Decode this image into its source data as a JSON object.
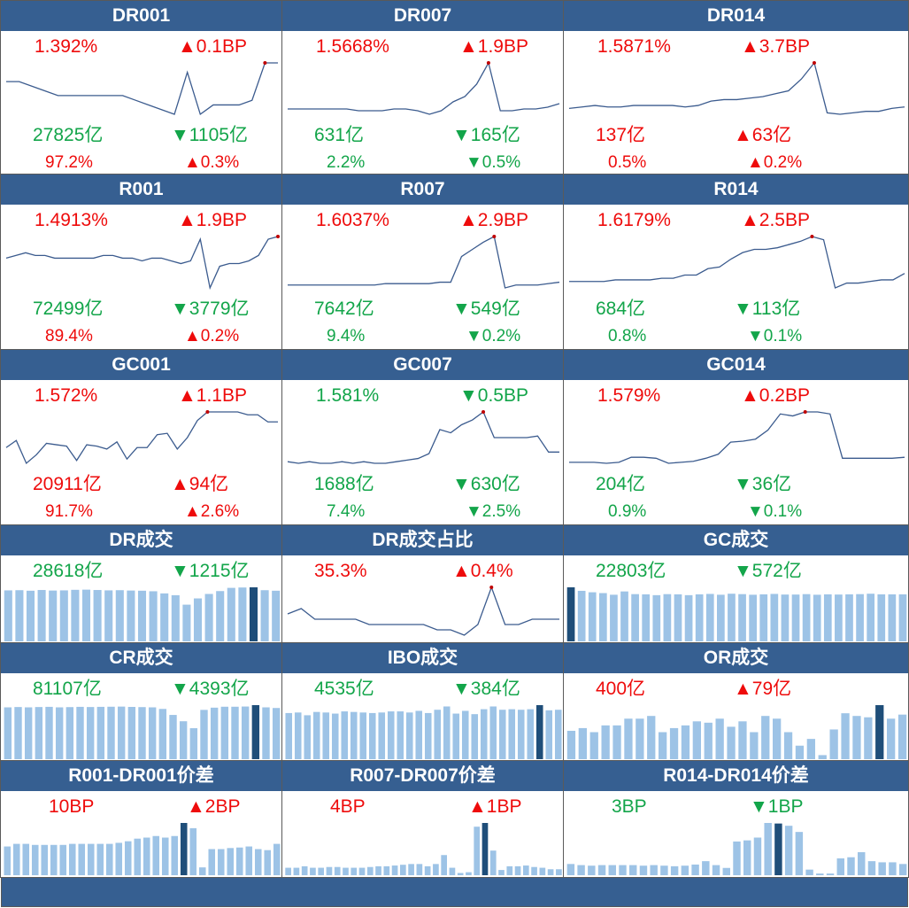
{
  "colors": {
    "header": "#365f91",
    "up": "#ee0b0b",
    "down": "#13a54a",
    "line": "#3b5b8e",
    "bar": "#9dc3e6",
    "bar_highlight": "#1f4e79"
  },
  "rate_panels": [
    {
      "title": "DR001",
      "rate": "1.392%",
      "rate_dir": "up",
      "change": "▲0.1BP",
      "vol": "27825亿",
      "vol_dir": "down",
      "vol_change": "▼1105亿",
      "share": "97.2%",
      "share_dir": "up",
      "share_change": "▲0.3%",
      "chart_data": {
        "type": "line",
        "values": [
          1.388,
          1.388,
          1.387,
          1.386,
          1.385,
          1.385,
          1.385,
          1.385,
          1.385,
          1.385,
          1.384,
          1.383,
          1.382,
          1.381,
          1.39,
          1.381,
          1.383,
          1.383,
          1.383,
          1.384,
          1.392,
          1.392
        ]
      }
    },
    {
      "title": "DR007",
      "rate": "1.5668%",
      "rate_dir": "up",
      "change": "▲1.9BP",
      "vol": "631亿",
      "vol_dir": "down",
      "vol_change": "▼165亿",
      "share": "2.2%",
      "share_dir": "down",
      "share_change": "▼0.5%",
      "chart_data": {
        "type": "line",
        "values": [
          1.541,
          1.541,
          1.541,
          1.541,
          1.541,
          1.541,
          1.54,
          1.54,
          1.54,
          1.541,
          1.541,
          1.54,
          1.538,
          1.54,
          1.545,
          1.548,
          1.555,
          1.567,
          1.54,
          1.54,
          1.541,
          1.541,
          1.542,
          1.544
        ]
      }
    },
    {
      "title": "DR014",
      "rate": "1.5871%",
      "rate_dir": "up",
      "change": "▲3.7BP",
      "vol": "137亿",
      "vol_dir": "up",
      "vol_change": "▲63亿",
      "share": "0.5%",
      "share_dir": "up",
      "share_change": "▲0.2%",
      "chart_data": {
        "type": "line",
        "values": [
          1.555,
          1.556,
          1.557,
          1.556,
          1.556,
          1.557,
          1.557,
          1.557,
          1.557,
          1.556,
          1.557,
          1.56,
          1.561,
          1.561,
          1.562,
          1.563,
          1.565,
          1.567,
          1.575,
          1.586,
          1.552,
          1.551,
          1.552,
          1.553,
          1.553,
          1.555,
          1.556
        ]
      }
    },
    {
      "title": "R001",
      "rate": "1.4913%",
      "rate_dir": "up",
      "change": "▲1.9BP",
      "vol": "72499亿",
      "vol_dir": "down",
      "vol_change": "▼3779亿",
      "share": "89.4%",
      "share_dir": "up",
      "share_change": "▲0.2%",
      "chart_data": {
        "type": "line",
        "values": [
          1.483,
          1.484,
          1.485,
          1.484,
          1.484,
          1.483,
          1.483,
          1.483,
          1.483,
          1.483,
          1.484,
          1.484,
          1.483,
          1.483,
          1.482,
          1.483,
          1.483,
          1.482,
          1.481,
          1.482,
          1.49,
          1.472,
          1.48,
          1.481,
          1.481,
          1.482,
          1.484,
          1.49,
          1.491
        ]
      }
    },
    {
      "title": "R007",
      "rate": "1.6037%",
      "rate_dir": "up",
      "change": "▲2.9BP",
      "vol": "7642亿",
      "vol_dir": "down",
      "vol_change": "▼549亿",
      "share": "9.4%",
      "share_dir": "down",
      "share_change": "▼0.2%",
      "chart_data": {
        "type": "line",
        "values": [
          1.57,
          1.57,
          1.57,
          1.57,
          1.57,
          1.57,
          1.57,
          1.57,
          1.57,
          1.571,
          1.571,
          1.571,
          1.571,
          1.571,
          1.572,
          1.572,
          1.59,
          1.595,
          1.6,
          1.604,
          1.568,
          1.57,
          1.57,
          1.57,
          1.571,
          1.572
        ]
      }
    },
    {
      "title": "R014",
      "rate": "1.6179%",
      "rate_dir": "up",
      "change": "▲2.5BP",
      "vol": "684亿",
      "vol_dir": "down",
      "vol_change": "▼113亿",
      "share": "0.8%",
      "share_dir": "down",
      "share_change": "▼0.1%",
      "chart_data": {
        "type": "line",
        "values": [
          1.589,
          1.589,
          1.589,
          1.589,
          1.59,
          1.59,
          1.59,
          1.59,
          1.591,
          1.591,
          1.593,
          1.593,
          1.597,
          1.598,
          1.603,
          1.607,
          1.609,
          1.609,
          1.61,
          1.612,
          1.614,
          1.617,
          1.615,
          1.585,
          1.588,
          1.588,
          1.589,
          1.59,
          1.59,
          1.594
        ]
      }
    },
    {
      "title": "GC001",
      "rate": "1.572%",
      "rate_dir": "up",
      "change": "▲1.1BP",
      "vol": "20911亿",
      "vol_dir": "up",
      "vol_change": "▲94亿",
      "share": "91.7%",
      "share_dir": "up",
      "share_change": "▲2.6%",
      "chart_data": {
        "type": "line",
        "values": [
          1.546,
          1.551,
          1.535,
          1.541,
          1.549,
          1.548,
          1.547,
          1.537,
          1.548,
          1.547,
          1.545,
          1.55,
          1.538,
          1.546,
          1.546,
          1.555,
          1.556,
          1.545,
          1.553,
          1.565,
          1.571,
          1.571,
          1.571,
          1.571,
          1.569,
          1.569,
          1.564,
          1.564
        ]
      }
    },
    {
      "title": "GC007",
      "rate": "1.581%",
      "rate_dir": "down",
      "change": "▼0.5BP",
      "vol": "1688亿",
      "vol_dir": "down",
      "vol_change": "▼630亿",
      "share": "7.4%",
      "share_dir": "down",
      "share_change": "▼2.5%",
      "chart_data": {
        "type": "line",
        "values": [
          1.55,
          1.549,
          1.55,
          1.549,
          1.549,
          1.55,
          1.549,
          1.55,
          1.549,
          1.549,
          1.55,
          1.551,
          1.552,
          1.555,
          1.57,
          1.568,
          1.573,
          1.576,
          1.581,
          1.565,
          1.565,
          1.565,
          1.565,
          1.566,
          1.556,
          1.556
        ]
      }
    },
    {
      "title": "GC014",
      "rate": "1.579%",
      "rate_dir": "up",
      "change": "▲0.2BP",
      "vol": "204亿",
      "vol_dir": "down",
      "vol_change": "▼36亿",
      "share": "0.9%",
      "share_dir": "down",
      "share_change": "▼0.1%",
      "chart_data": {
        "type": "line",
        "values": [
          1.532,
          1.532,
          1.532,
          1.531,
          1.532,
          1.537,
          1.537,
          1.536,
          1.531,
          1.532,
          1.533,
          1.536,
          1.54,
          1.552,
          1.553,
          1.555,
          1.564,
          1.58,
          1.578,
          1.582,
          1.582,
          1.58,
          1.536,
          1.536,
          1.536,
          1.536,
          1.536,
          1.537
        ]
      }
    }
  ],
  "volume_panels": [
    {
      "title": "DR成交",
      "value": "28618亿",
      "value_dir": "down",
      "change": "▼1215亿",
      "change_dir": "down",
      "chart_data": {
        "type": "bar",
        "values": [
          28.5,
          28.6,
          28.3,
          28.7,
          28.4,
          28.5,
          28.8,
          28.9,
          28.7,
          28.5,
          28.6,
          28.4,
          28.3,
          28.0,
          26.8,
          25.8,
          20.5,
          24.0,
          26.5,
          28.1,
          29.9,
          30.1,
          30.2,
          28.6,
          28.3
        ],
        "highlight": 22
      }
    },
    {
      "title": "DR成交占比",
      "value": "35.3%",
      "value_dir": "up",
      "change": "▲0.4%",
      "change_dir": "up",
      "chart_data": {
        "type": "line",
        "values": [
          34.8,
          34.9,
          34.7,
          34.7,
          34.7,
          34.7,
          34.6,
          34.6,
          34.6,
          34.6,
          34.6,
          34.5,
          34.5,
          34.4,
          34.6,
          35.3,
          34.6,
          34.6,
          34.7,
          34.7,
          34.7
        ]
      }
    },
    {
      "title": "GC成交",
      "value": "22803亿",
      "value_dir": "down",
      "change": "▼572亿",
      "change_dir": "down",
      "chart_data": {
        "type": "bar",
        "values": [
          26.2,
          24.5,
          23.8,
          23.4,
          22.6,
          24.2,
          22.9,
          22.8,
          22.4,
          22.9,
          22.8,
          22.4,
          22.8,
          23.0,
          22.6,
          23.1,
          22.9,
          22.6,
          22.8,
          23.0,
          22.7,
          22.7,
          22.9,
          22.6,
          22.8,
          22.7,
          22.8,
          22.9,
          23.1,
          22.8,
          22.8,
          22.8
        ],
        "highlight": 0
      }
    },
    {
      "title": "CR成交",
      "value": "81107亿",
      "value_dir": "down",
      "change": "▼4393亿",
      "change_dir": "down",
      "chart_data": {
        "type": "bar",
        "values": [
          82,
          82.5,
          82,
          82.5,
          82.8,
          82,
          82.4,
          82.8,
          82.5,
          82.8,
          83,
          83.2,
          82.7,
          82.4,
          82,
          79.5,
          70,
          60,
          49,
          78,
          81.5,
          83,
          83,
          83.3,
          85.5,
          82,
          81
        ],
        "highlight": 24
      }
    },
    {
      "title": "IBO成交",
      "value": "4535亿",
      "value_dir": "down",
      "change": "▼384亿",
      "change_dir": "down",
      "chart_data": {
        "type": "bar",
        "values": [
          4.2,
          4.25,
          4.0,
          4.3,
          4.25,
          4.15,
          4.35,
          4.3,
          4.25,
          4.2,
          4.25,
          4.35,
          4.35,
          4.25,
          4.4,
          4.2,
          4.5,
          4.8,
          4.15,
          4.4,
          4.1,
          4.55,
          4.8,
          4.5,
          4.55,
          4.5,
          4.55,
          4.92,
          4.45,
          4.5
        ],
        "highlight": 27
      }
    },
    {
      "title": "OR成交",
      "value": "400亿",
      "value_dir": "up",
      "change": "▲79亿",
      "change_dir": "up",
      "chart_data": {
        "type": "bar",
        "values": [
          210,
          230,
          200,
          250,
          250,
          300,
          300,
          320,
          200,
          230,
          250,
          280,
          270,
          300,
          240,
          280,
          200,
          320,
          300,
          200,
          100,
          150,
          30,
          220,
          340,
          320,
          310,
          400,
          300,
          330
        ],
        "highlight": 27
      }
    }
  ],
  "spread_panels": [
    {
      "title": "R001-DR001价差",
      "value": "10BP",
      "value_dir": "up",
      "change": "▲2BP",
      "change_dir": "up",
      "chart_data": {
        "type": "bar",
        "values": [
          5.5,
          6.0,
          6.0,
          5.8,
          5.8,
          5.8,
          5.8,
          6.0,
          6.0,
          6.0,
          6.0,
          6.0,
          6.2,
          6.5,
          7.0,
          7.2,
          7.5,
          7.2,
          7.5,
          10,
          9.0,
          1.5,
          5.0,
          5.0,
          5.2,
          5.3,
          5.5,
          5.0,
          4.8,
          6.0
        ],
        "highlight": 19
      }
    },
    {
      "title": "R007-DR007价差",
      "value": "4BP",
      "value_dir": "up",
      "change": "▲1BP",
      "change_dir": "up",
      "chart_data": {
        "type": "bar",
        "values": [
          1.0,
          1.0,
          1.2,
          1.0,
          1.0,
          1.1,
          1.1,
          1.0,
          1.0,
          1.0,
          1.1,
          1.2,
          1.2,
          1.3,
          1.4,
          1.5,
          1.5,
          1.2,
          1.5,
          2.7,
          1.0,
          0.3,
          0.4,
          6.5,
          7.0,
          3.3,
          0.7,
          1.2,
          1.2,
          1.3,
          1.1,
          1.0,
          0.8,
          0.8
        ],
        "highlight": 24
      }
    },
    {
      "title": "R014-DR014价差",
      "value": "3BP",
      "value_dir": "down",
      "change": "▼1BP",
      "change_dir": "down",
      "chart_data": {
        "type": "bar",
        "values": [
          2.0,
          1.8,
          1.7,
          1.8,
          1.8,
          1.8,
          1.8,
          1.7,
          1.8,
          1.7,
          1.6,
          1.7,
          1.9,
          2.5,
          1.8,
          1.3,
          6.0,
          6.2,
          6.7,
          9.3,
          9.2,
          8.8,
          7.7,
          1.0,
          0.3,
          0.3,
          3.0,
          3.2,
          4.1,
          2.5,
          2.3,
          2.3,
          2.0
        ],
        "highlight": 20
      }
    }
  ]
}
